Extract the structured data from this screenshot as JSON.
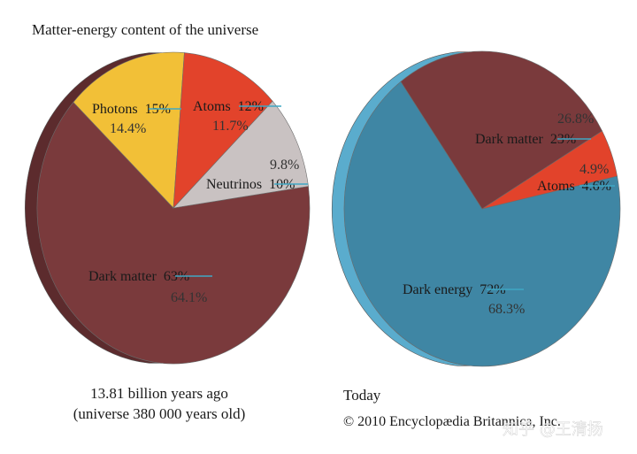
{
  "title": "Matter-energy content of the universe",
  "copyright": "© 2010 Encyclopædia Britannica, Inc.",
  "watermark": "知乎 @王清扬",
  "colors": {
    "dark_matter": "#7a3a3c",
    "photons": "#f2c037",
    "atoms": "#e2432b",
    "neutrinos": "#c9c2c2",
    "dark_energy": "#3f86a4",
    "edge_dark_matter": "#5c2b2d",
    "edge_dark_energy": "#5aaccd",
    "correction_line": "#3fa7c4"
  },
  "chart_data": [
    {
      "type": "pie",
      "caption_line1": "13.81 billion years ago",
      "caption_line2": "(universe 380 000 years old)",
      "slices": [
        {
          "key": "dark_matter",
          "label": "Dark matter",
          "old": "63%",
          "new": "64.1%",
          "value": 64.1
        },
        {
          "key": "photons",
          "label": "Photons",
          "old": "15%",
          "new": "14.4%",
          "value": 14.4
        },
        {
          "key": "atoms",
          "label": "Atoms",
          "old": "12%",
          "new": "11.7%",
          "value": 11.7
        },
        {
          "key": "neutrinos",
          "label": "Neutrinos",
          "old": "10%",
          "new": "9.8%",
          "value": 9.8
        }
      ]
    },
    {
      "type": "pie",
      "caption_line1": "Today",
      "slices": [
        {
          "key": "dark_energy",
          "label": "Dark energy",
          "old": "72%",
          "new": "68.3%",
          "value": 68.3
        },
        {
          "key": "dark_matter",
          "label": "Dark matter",
          "old": "23%",
          "new": "26.8%",
          "value": 26.8
        },
        {
          "key": "atoms",
          "label": "Atoms",
          "old": "4.6%",
          "new": "4.9%",
          "value": 4.9
        }
      ]
    }
  ]
}
